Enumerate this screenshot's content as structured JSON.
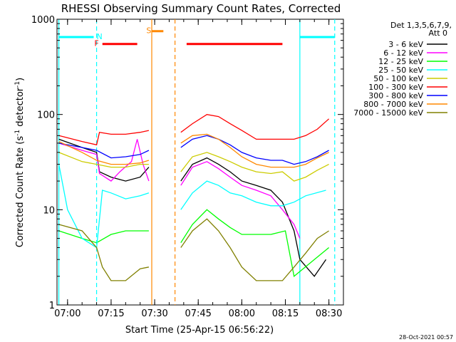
{
  "chart_data": {
    "type": "line",
    "title": "RHESSI Observing Summary Count Rates, Corrected",
    "xlabel": "Start Time (25-Apr-15 06:56:22)",
    "ylabel": "Corrected Count Rate (s",
    "ylabel_exp1": "-1",
    "ylabel_mid": " detector",
    "ylabel_exp2": "-1",
    "ylabel_end": ")",
    "timestamp": "28-Oct-2021 00:57",
    "y_scale": "log",
    "xlim": [
      "06:56:22",
      "08:35:00"
    ],
    "ylim": [
      1,
      1000
    ],
    "x_ticks": [
      "07:00",
      "07:15",
      "07:30",
      "07:45",
      "08:00",
      "08:15",
      "08:30"
    ],
    "y_ticks": [
      "1",
      "10",
      "100",
      "1000"
    ],
    "legend": {
      "title_line1": "Det 1,3,5,6,7,9,",
      "title_line2": "Att 0",
      "position": "right"
    },
    "gaps": [
      [
        "07:29",
        "07:38"
      ]
    ],
    "series": [
      {
        "name": "3 - 6 keV",
        "color": "#000000",
        "values": [
          [
            "06:57",
            55
          ],
          [
            "07:05",
            45
          ],
          [
            "07:10",
            40
          ],
          [
            "07:11",
            25
          ],
          [
            "07:15",
            22
          ],
          [
            "07:20",
            20
          ],
          [
            "07:25",
            22
          ],
          [
            "07:28",
            28
          ],
          [
            "07:39",
            20
          ],
          [
            "07:43",
            30
          ],
          [
            "07:48",
            35
          ],
          [
            "07:52",
            30
          ],
          [
            "07:56",
            25
          ],
          [
            "08:00",
            20
          ],
          [
            "08:05",
            18
          ],
          [
            "08:10",
            16
          ],
          [
            "08:14",
            12
          ],
          [
            "08:18",
            6
          ],
          [
            "08:20",
            3
          ],
          [
            "08:25",
            2
          ],
          [
            "08:29",
            3
          ]
        ]
      },
      {
        "name": "6 - 12 keV",
        "color": "#ff00ff",
        "values": [
          [
            "06:57",
            50
          ],
          [
            "07:05",
            42
          ],
          [
            "07:10",
            38
          ],
          [
            "07:11",
            24
          ],
          [
            "07:15",
            20
          ],
          [
            "07:18",
            25
          ],
          [
            "07:22",
            32
          ],
          [
            "07:24",
            55
          ],
          [
            "07:26",
            30
          ],
          [
            "07:28",
            20
          ],
          [
            "07:39",
            18
          ],
          [
            "07:43",
            28
          ],
          [
            "07:48",
            32
          ],
          [
            "07:52",
            27
          ],
          [
            "07:56",
            22
          ],
          [
            "08:00",
            18
          ],
          [
            "08:05",
            16
          ],
          [
            "08:10",
            14
          ],
          [
            "08:14",
            10
          ],
          [
            "08:18",
            7
          ],
          [
            "08:20",
            5
          ]
        ]
      },
      {
        "name": "12 - 25 keV",
        "color": "#00ff00",
        "values": [
          [
            "06:57",
            6
          ],
          [
            "07:05",
            5
          ],
          [
            "07:10",
            4.5
          ],
          [
            "07:15",
            5.5
          ],
          [
            "07:20",
            6
          ],
          [
            "07:25",
            6
          ],
          [
            "07:28",
            6
          ],
          [
            "07:39",
            4.5
          ],
          [
            "07:43",
            7
          ],
          [
            "07:48",
            10
          ],
          [
            "07:52",
            8
          ],
          [
            "07:56",
            6.5
          ],
          [
            "08:00",
            5.5
          ],
          [
            "08:05",
            5.5
          ],
          [
            "08:10",
            5.5
          ],
          [
            "08:15",
            6
          ],
          [
            "08:18",
            2
          ],
          [
            "08:25",
            3
          ],
          [
            "08:30",
            4
          ]
        ]
      },
      {
        "name": "25 - 50 keV",
        "color": "#00ffff",
        "values": [
          [
            "06:57",
            30
          ],
          [
            "07:00",
            10
          ],
          [
            "07:05",
            5
          ],
          [
            "07:10",
            4
          ],
          [
            "07:12",
            16
          ],
          [
            "07:15",
            15
          ],
          [
            "07:20",
            13
          ],
          [
            "07:25",
            14
          ],
          [
            "07:28",
            15
          ],
          [
            "07:39",
            10
          ],
          [
            "07:43",
            15
          ],
          [
            "07:48",
            20
          ],
          [
            "07:52",
            18
          ],
          [
            "07:56",
            15
          ],
          [
            "08:00",
            14
          ],
          [
            "08:05",
            12
          ],
          [
            "08:10",
            11
          ],
          [
            "08:14",
            11
          ],
          [
            "08:18",
            12
          ],
          [
            "08:22",
            14
          ],
          [
            "08:29",
            16
          ]
        ]
      },
      {
        "name": "50 - 100 keV",
        "color": "#cccc00",
        "values": [
          [
            "06:57",
            40
          ],
          [
            "07:05",
            32
          ],
          [
            "07:10",
            30
          ],
          [
            "07:15",
            28
          ],
          [
            "07:20",
            28
          ],
          [
            "07:25",
            30
          ],
          [
            "07:28",
            30
          ],
          [
            "07:39",
            25
          ],
          [
            "07:43",
            36
          ],
          [
            "07:48",
            40
          ],
          [
            "07:52",
            36
          ],
          [
            "07:56",
            32
          ],
          [
            "08:00",
            28
          ],
          [
            "08:05",
            25
          ],
          [
            "08:10",
            24
          ],
          [
            "08:14",
            25
          ],
          [
            "08:18",
            20
          ],
          [
            "08:22",
            22
          ],
          [
            "08:26",
            26
          ],
          [
            "08:30",
            30
          ]
        ]
      },
      {
        "name": "100 - 300 keV",
        "color": "#ff0000",
        "values": [
          [
            "06:57",
            60
          ],
          [
            "07:05",
            52
          ],
          [
            "07:10",
            48
          ],
          [
            "07:11",
            65
          ],
          [
            "07:15",
            62
          ],
          [
            "07:20",
            62
          ],
          [
            "07:25",
            65
          ],
          [
            "07:28",
            68
          ],
          [
            "07:39",
            65
          ],
          [
            "07:43",
            80
          ],
          [
            "07:48",
            100
          ],
          [
            "07:52",
            95
          ],
          [
            "07:56",
            80
          ],
          [
            "08:00",
            68
          ],
          [
            "08:05",
            55
          ],
          [
            "08:10",
            55
          ],
          [
            "08:14",
            55
          ],
          [
            "08:18",
            55
          ],
          [
            "08:22",
            60
          ],
          [
            "08:26",
            70
          ],
          [
            "08:30",
            90
          ]
        ]
      },
      {
        "name": "300 - 800 keV",
        "color": "#0000ff",
        "values": [
          [
            "06:57",
            50
          ],
          [
            "07:05",
            45
          ],
          [
            "07:10",
            42
          ],
          [
            "07:15",
            35
          ],
          [
            "07:20",
            36
          ],
          [
            "07:25",
            38
          ],
          [
            "07:28",
            42
          ],
          [
            "07:39",
            45
          ],
          [
            "07:43",
            55
          ],
          [
            "07:48",
            60
          ],
          [
            "07:52",
            55
          ],
          [
            "07:56",
            48
          ],
          [
            "08:00",
            40
          ],
          [
            "08:05",
            35
          ],
          [
            "08:10",
            33
          ],
          [
            "08:14",
            33
          ],
          [
            "08:18",
            30
          ],
          [
            "08:22",
            32
          ],
          [
            "08:26",
            36
          ],
          [
            "08:30",
            42
          ]
        ]
      },
      {
        "name": "800 - 7000 keV",
        "color": "#ff8800",
        "values": [
          [
            "06:57",
            52
          ],
          [
            "07:05",
            40
          ],
          [
            "07:10",
            33
          ],
          [
            "07:15",
            30
          ],
          [
            "07:20",
            30
          ],
          [
            "07:25",
            31
          ],
          [
            "07:28",
            33
          ],
          [
            "07:39",
            50
          ],
          [
            "07:43",
            60
          ],
          [
            "07:48",
            62
          ],
          [
            "07:52",
            55
          ],
          [
            "07:56",
            45
          ],
          [
            "08:00",
            36
          ],
          [
            "08:05",
            30
          ],
          [
            "08:10",
            28
          ],
          [
            "08:14",
            28
          ],
          [
            "08:18",
            28
          ],
          [
            "08:22",
            30
          ],
          [
            "08:26",
            35
          ],
          [
            "08:30",
            40
          ]
        ]
      },
      {
        "name": "7000 - 15000 keV",
        "color": "#808000",
        "values": [
          [
            "06:57",
            7
          ],
          [
            "07:05",
            6
          ],
          [
            "07:10",
            4
          ],
          [
            "07:12",
            2.5
          ],
          [
            "07:15",
            1.8
          ],
          [
            "07:20",
            1.8
          ],
          [
            "07:25",
            2.4
          ],
          [
            "07:28",
            2.5
          ],
          [
            "07:39",
            4
          ],
          [
            "07:43",
            6
          ],
          [
            "07:48",
            8
          ],
          [
            "07:52",
            6
          ],
          [
            "07:56",
            4
          ],
          [
            "08:00",
            2.5
          ],
          [
            "08:05",
            1.8
          ],
          [
            "08:10",
            1.8
          ],
          [
            "08:14",
            1.8
          ],
          [
            "08:18",
            2.5
          ],
          [
            "08:22",
            3.5
          ],
          [
            "08:26",
            5
          ],
          [
            "08:30",
            6
          ]
        ]
      }
    ],
    "annotations": [
      {
        "label": "N",
        "color": "#00ffff",
        "y": 650,
        "segments": [
          [
            "06:57",
            "07:09"
          ],
          [
            "08:20",
            "08:32"
          ]
        ],
        "label_at": "07:11"
      },
      {
        "label": "F",
        "color": "#ff0000",
        "y": 550,
        "segments": [
          [
            "07:12",
            "07:24"
          ],
          [
            "07:41",
            "08:14"
          ]
        ],
        "label_at": "07:10"
      },
      {
        "label": "S",
        "color": "#ff8800",
        "y": 750,
        "segments": [
          [
            "07:29",
            "07:33"
          ]
        ],
        "label_at": "07:28"
      }
    ],
    "vertical_markers": [
      {
        "color": "#00ffff",
        "style": "solid",
        "x": "06:57"
      },
      {
        "color": "#00ffff",
        "style": "dashed",
        "x": "07:10"
      },
      {
        "color": "#ff8800",
        "style": "solid",
        "x": "07:29"
      },
      {
        "color": "#ff8800",
        "style": "dashed",
        "x": "07:37"
      },
      {
        "color": "#00ffff",
        "style": "solid",
        "x": "08:20"
      },
      {
        "color": "#00ffff",
        "style": "dashed",
        "x": "08:32"
      }
    ]
  }
}
